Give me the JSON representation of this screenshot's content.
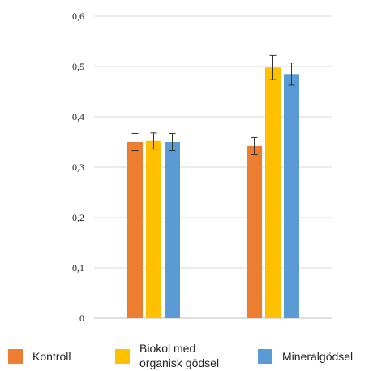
{
  "chart_data": {
    "type": "bar",
    "title": "",
    "xlabel": "",
    "ylabel": "",
    "ylim": [
      0,
      0.6
    ],
    "yticks": [
      "0",
      "0,1",
      "0,2",
      "0,3",
      "0,4",
      "0,5",
      "0,6"
    ],
    "grid": true,
    "legend_position": "bottom",
    "categories": [
      "",
      ""
    ],
    "series": [
      {
        "name": "Kontroll",
        "color": "#ED7D31",
        "values": [
          0.35,
          0.342
        ],
        "errors": [
          0.017,
          0.017
        ]
      },
      {
        "name": "Biokol med organisk gödsel",
        "legend_lines": [
          "Biokol med",
          "organisk gödsel"
        ],
        "color": "#FFC000",
        "values": [
          0.352,
          0.498
        ],
        "errors": [
          0.016,
          0.024
        ]
      },
      {
        "name": "Mineralgödsel",
        "color": "#5B9BD5",
        "values": [
          0.35,
          0.485
        ],
        "errors": [
          0.017,
          0.022
        ]
      }
    ]
  }
}
